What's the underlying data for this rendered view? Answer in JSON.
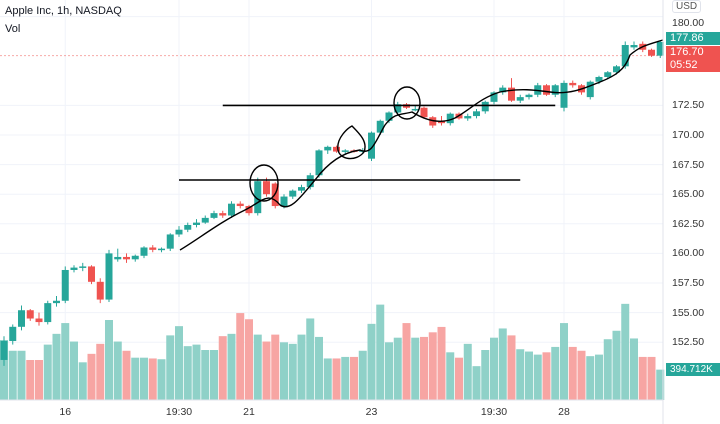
{
  "header": {
    "title": "Apple Inc, 1h, NASDAQ",
    "volume_label": "Vol"
  },
  "currency_button": "USD",
  "price_tags": {
    "last": "177.86",
    "prev": "176.70",
    "countdown": "05:52",
    "volume": "394.712K"
  },
  "colors": {
    "up": "#26a69a",
    "down": "#ef5350",
    "vol_up": "#8fd1c8",
    "vol_down": "#f7a5a3",
    "annotation": "#000000"
  },
  "chart_data": {
    "type": "candlestick",
    "title": "Apple Inc, 1h, NASDAQ",
    "ylim": [
      150,
      180
    ],
    "grid": true,
    "price_ticks": [
      "180.00",
      "172.50",
      "170.00",
      "167.50",
      "165.00",
      "162.50",
      "160.00",
      "157.50",
      "155.00",
      "152.50"
    ],
    "time_ticks": [
      {
        "label": "16",
        "index": 7
      },
      {
        "label": "19:30",
        "index": 20
      },
      {
        "label": "21",
        "index": 28
      },
      {
        "label": "23",
        "index": 42
      },
      {
        "label": "19:30",
        "index": 56
      },
      {
        "label": "28",
        "index": 64
      }
    ],
    "columns": [
      "open",
      "high",
      "low",
      "close",
      "volume_k"
    ],
    "candles": [
      [
        151.0,
        153.0,
        150.5,
        152.6,
        780
      ],
      [
        152.6,
        154.0,
        152.3,
        153.8,
        640
      ],
      [
        153.8,
        155.6,
        153.5,
        155.2,
        640
      ],
      [
        155.2,
        155.3,
        154.3,
        154.5,
        520
      ],
      [
        154.5,
        155.0,
        153.9,
        154.2,
        520
      ],
      [
        154.2,
        156.0,
        154.0,
        155.8,
        720
      ],
      [
        155.8,
        156.4,
        155.5,
        156.0,
        860
      ],
      [
        156.0,
        158.9,
        155.8,
        158.6,
        1000
      ],
      [
        158.6,
        159.0,
        158.4,
        158.8,
        760
      ],
      [
        158.8,
        159.2,
        158.5,
        158.9,
        490
      ],
      [
        158.9,
        159.0,
        157.4,
        157.6,
        600
      ],
      [
        157.6,
        157.9,
        155.8,
        156.1,
        730
      ],
      [
        156.1,
        160.3,
        155.9,
        160.0,
        1040
      ],
      [
        159.5,
        160.4,
        159.3,
        159.7,
        760
      ],
      [
        159.7,
        160.0,
        159.2,
        159.5,
        640
      ],
      [
        159.5,
        159.9,
        159.3,
        159.8,
        550
      ],
      [
        159.8,
        160.6,
        159.6,
        160.5,
        550
      ],
      [
        160.5,
        160.7,
        160.1,
        160.3,
        540
      ],
      [
        160.3,
        160.5,
        160.1,
        160.4,
        530
      ],
      [
        160.4,
        161.7,
        160.2,
        161.6,
        840
      ],
      [
        161.6,
        162.3,
        161.4,
        162.0,
        960
      ],
      [
        162.0,
        162.6,
        161.8,
        162.4,
        700
      ],
      [
        162.4,
        162.9,
        162.2,
        162.6,
        720
      ],
      [
        162.6,
        163.2,
        162.5,
        163.0,
        650
      ],
      [
        163.0,
        163.6,
        162.9,
        163.4,
        650
      ],
      [
        163.4,
        163.6,
        163.0,
        163.2,
        830
      ],
      [
        163.2,
        164.4,
        163.0,
        164.2,
        860
      ],
      [
        164.2,
        164.4,
        163.8,
        164.0,
        1130
      ],
      [
        164.0,
        164.1,
        163.2,
        163.4,
        1050
      ],
      [
        163.4,
        166.4,
        163.2,
        166.1,
        850
      ],
      [
        166.1,
        166.4,
        164.8,
        165.0,
        760
      ],
      [
        165.9,
        166.0,
        163.8,
        164.0,
        850
      ],
      [
        164.0,
        165.0,
        163.8,
        164.8,
        750
      ],
      [
        164.8,
        165.4,
        164.6,
        165.3,
        730
      ],
      [
        165.3,
        165.8,
        165.1,
        165.6,
        850
      ],
      [
        165.6,
        166.8,
        165.4,
        166.6,
        1060
      ],
      [
        166.6,
        168.8,
        166.4,
        168.7,
        820
      ],
      [
        168.7,
        169.1,
        168.4,
        169.0,
        540
      ],
      [
        169.0,
        169.1,
        168.5,
        168.6,
        540
      ],
      [
        168.6,
        168.8,
        168.4,
        168.7,
        560
      ],
      [
        168.7,
        168.8,
        168.5,
        168.6,
        560
      ],
      [
        168.6,
        168.9,
        168.4,
        168.7,
        640
      ],
      [
        168.0,
        170.3,
        167.8,
        170.2,
        990
      ],
      [
        170.2,
        171.3,
        170.0,
        171.2,
        1240
      ],
      [
        171.2,
        172.0,
        171.0,
        171.9,
        750
      ],
      [
        171.9,
        172.8,
        171.7,
        172.6,
        810
      ],
      [
        172.6,
        172.7,
        172.2,
        172.3,
        1000
      ],
      [
        172.1,
        172.5,
        172.0,
        172.2,
        810
      ],
      [
        172.3,
        172.4,
        171.4,
        171.5,
        820
      ],
      [
        171.5,
        171.6,
        170.6,
        170.8,
        880
      ],
      [
        171.2,
        171.6,
        170.8,
        171.0,
        950
      ],
      [
        171.0,
        171.9,
        170.8,
        171.8,
        620
      ],
      [
        171.8,
        171.9,
        171.3,
        171.4,
        550
      ],
      [
        171.4,
        171.8,
        171.2,
        171.6,
        730
      ],
      [
        171.6,
        172.2,
        171.4,
        172.0,
        440
      ],
      [
        172.0,
        172.9,
        171.8,
        172.8,
        650
      ],
      [
        172.8,
        173.7,
        172.6,
        173.6,
        810
      ],
      [
        173.6,
        174.2,
        173.4,
        174.0,
        930
      ],
      [
        174.0,
        174.8,
        172.8,
        172.9,
        840
      ],
      [
        172.9,
        173.4,
        172.7,
        173.2,
        660
      ],
      [
        173.2,
        173.5,
        173.0,
        173.4,
        630
      ],
      [
        173.4,
        174.4,
        173.2,
        174.2,
        590
      ],
      [
        174.2,
        174.3,
        173.3,
        173.4,
        620
      ],
      [
        173.4,
        174.3,
        173.2,
        174.2,
        690
      ],
      [
        172.3,
        174.6,
        172.0,
        174.4,
        1000
      ],
      [
        174.4,
        174.6,
        174.0,
        174.2,
        690
      ],
      [
        174.2,
        174.3,
        173.4,
        173.6,
        640
      ],
      [
        173.2,
        174.6,
        173.0,
        174.5,
        570
      ],
      [
        174.5,
        175.0,
        174.3,
        174.9,
        590
      ],
      [
        174.9,
        175.4,
        174.7,
        175.3,
        790
      ],
      [
        175.3,
        175.9,
        175.1,
        175.8,
        900
      ],
      [
        175.8,
        177.9,
        175.6,
        177.6,
        1250
      ],
      [
        177.4,
        177.9,
        177.2,
        177.6,
        800
      ],
      [
        177.7,
        177.9,
        177.0,
        177.2,
        560
      ],
      [
        177.2,
        177.3,
        176.6,
        176.7,
        560
      ],
      [
        176.7,
        178.0,
        176.5,
        177.86,
        394.712
      ]
    ],
    "annotations": [
      {
        "type": "horizontal-line",
        "price": 172.5,
        "from_index": 25,
        "to_index": 63
      },
      {
        "type": "horizontal-line",
        "price": 166.2,
        "from_index": 20,
        "to_index": 59
      }
    ]
  }
}
